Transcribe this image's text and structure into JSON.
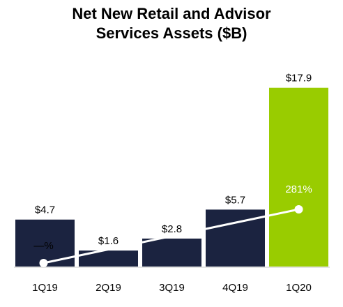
{
  "chart_data": {
    "type": "bar",
    "title_line1": "Net New Retail and Advisor",
    "title_line2": "Services Assets ($B)",
    "categories": [
      "1Q19",
      "2Q19",
      "3Q19",
      "4Q19",
      "1Q20"
    ],
    "series": [
      {
        "values": [
          4.7,
          1.6,
          2.8,
          5.7,
          17.9
        ],
        "value_labels": [
          "$4.7",
          "$1.6",
          "$2.8",
          "$5.7",
          "$17.9"
        ],
        "colors": [
          "#1b2340",
          "#1b2340",
          "#1b2340",
          "#1b2340",
          "#99cc00"
        ]
      }
    ],
    "line_overlay": {
      "type": "line",
      "points": [
        {
          "category": "1Q19",
          "label": "—%"
        },
        {
          "category": "1Q20",
          "value": 281,
          "label": "281%"
        }
      ],
      "color": "#ffffff"
    },
    "ylim": [
      0,
      19
    ],
    "grid": false,
    "legend": "none"
  }
}
